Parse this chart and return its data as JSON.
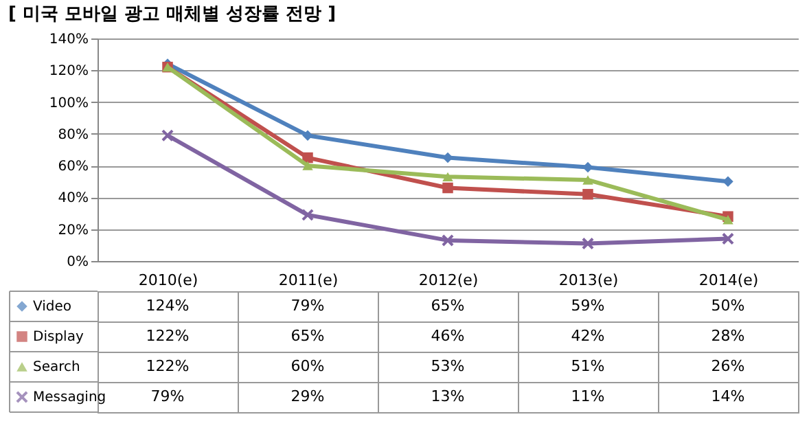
{
  "chart_data": {
    "type": "line",
    "title": "[ 미국 모바일 광고 매체별 성장률 전망 ]",
    "categories": [
      "2010(e)",
      "2011(e)",
      "2012(e)",
      "2013(e)",
      "2014(e)"
    ],
    "ylim": [
      0,
      140
    ],
    "yticks": [
      {
        "value": 0,
        "label": "0%"
      },
      {
        "value": 20,
        "label": "20%"
      },
      {
        "value": 40,
        "label": "40%"
      },
      {
        "value": 60,
        "label": "60%"
      },
      {
        "value": 80,
        "label": "80%"
      },
      {
        "value": 100,
        "label": "100%"
      },
      {
        "value": 120,
        "label": "120%"
      },
      {
        "value": 140,
        "label": "140%"
      }
    ],
    "grid": "y",
    "legend": "bottom",
    "line_style": "solid",
    "series": [
      {
        "name": "Video",
        "color": "#4f81bd",
        "marker": "diamond",
        "values": [
          124,
          79,
          65,
          59,
          50
        ],
        "value_labels": [
          "124%",
          "79%",
          "65%",
          "59%",
          "50%"
        ]
      },
      {
        "name": "Display",
        "color": "#c0504d",
        "marker": "square",
        "values": [
          122,
          65,
          46,
          42,
          28
        ],
        "value_labels": [
          "122%",
          "65%",
          "46%",
          "42%",
          "28%"
        ]
      },
      {
        "name": "Search",
        "color": "#9bbb59",
        "marker": "triangle",
        "values": [
          122,
          60,
          53,
          51,
          26
        ],
        "value_labels": [
          "122%",
          "60%",
          "53%",
          "51%",
          "26%"
        ]
      },
      {
        "name": "Messaging",
        "color": "#8064a2",
        "marker": "cross",
        "values": [
          79,
          29,
          13,
          11,
          14
        ],
        "value_labels": [
          "79%",
          "29%",
          "13%",
          "11%",
          "14%"
        ]
      }
    ]
  }
}
